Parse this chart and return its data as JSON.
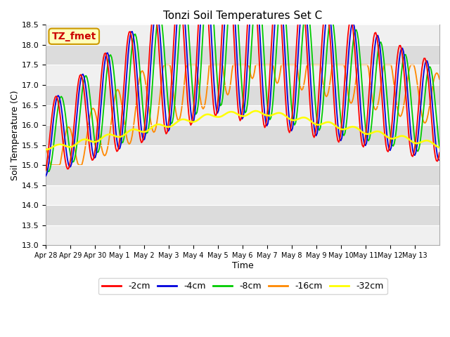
{
  "title": "Tonzi Soil Temperatures Set C",
  "xlabel": "Time",
  "ylabel": "Soil Temperature (C)",
  "ylim": [
    13.0,
    18.5
  ],
  "yticks": [
    13.0,
    13.5,
    14.0,
    14.5,
    15.0,
    15.5,
    16.0,
    16.5,
    17.0,
    17.5,
    18.0,
    18.5
  ],
  "xtick_labels": [
    "Apr 28",
    "Apr 29",
    "Apr 30",
    "May 1",
    "May 2",
    "May 3",
    "May 4",
    "May 5",
    "May 6",
    "May 7",
    "May 8",
    "May 9",
    "May 10",
    "May 11",
    "May 12",
    "May 13"
  ],
  "line_colors": [
    "#ff0000",
    "#0000dd",
    "#00cc00",
    "#ff8800",
    "#ffff00"
  ],
  "line_labels": [
    "-2cm",
    "-4cm",
    "-8cm",
    "-16cm",
    "-32cm"
  ],
  "bg_color_light": "#f0f0f0",
  "bg_color_dark": "#dcdcdc",
  "fig_bg": "#ffffff",
  "annotation_text": "TZ_fmet",
  "annotation_bg": "#ffffbb",
  "annotation_border": "#cc9900",
  "annotation_color": "#cc0000"
}
